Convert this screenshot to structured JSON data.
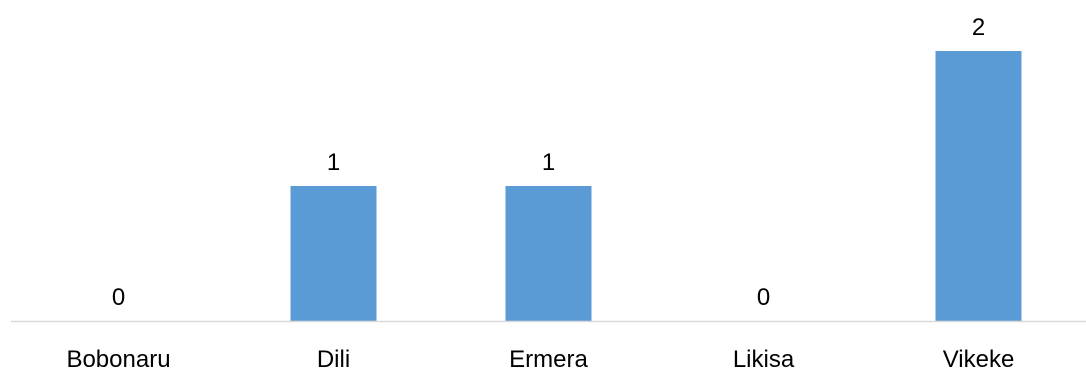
{
  "chart_data": {
    "type": "bar",
    "categories": [
      "Bobonaru",
      "Dili",
      "Ermera",
      "Likisa",
      "Vikeke"
    ],
    "values": [
      0,
      1,
      1,
      0,
      2
    ],
    "data_labels": [
      "0",
      "1",
      "1",
      "0",
      "2"
    ],
    "title": "",
    "xlabel": "",
    "ylabel": "",
    "ylim": [
      0,
      2
    ],
    "grid": false,
    "legend": "none",
    "bar_color": "#5B9BD5",
    "axis_color": "#D9D9D9"
  }
}
